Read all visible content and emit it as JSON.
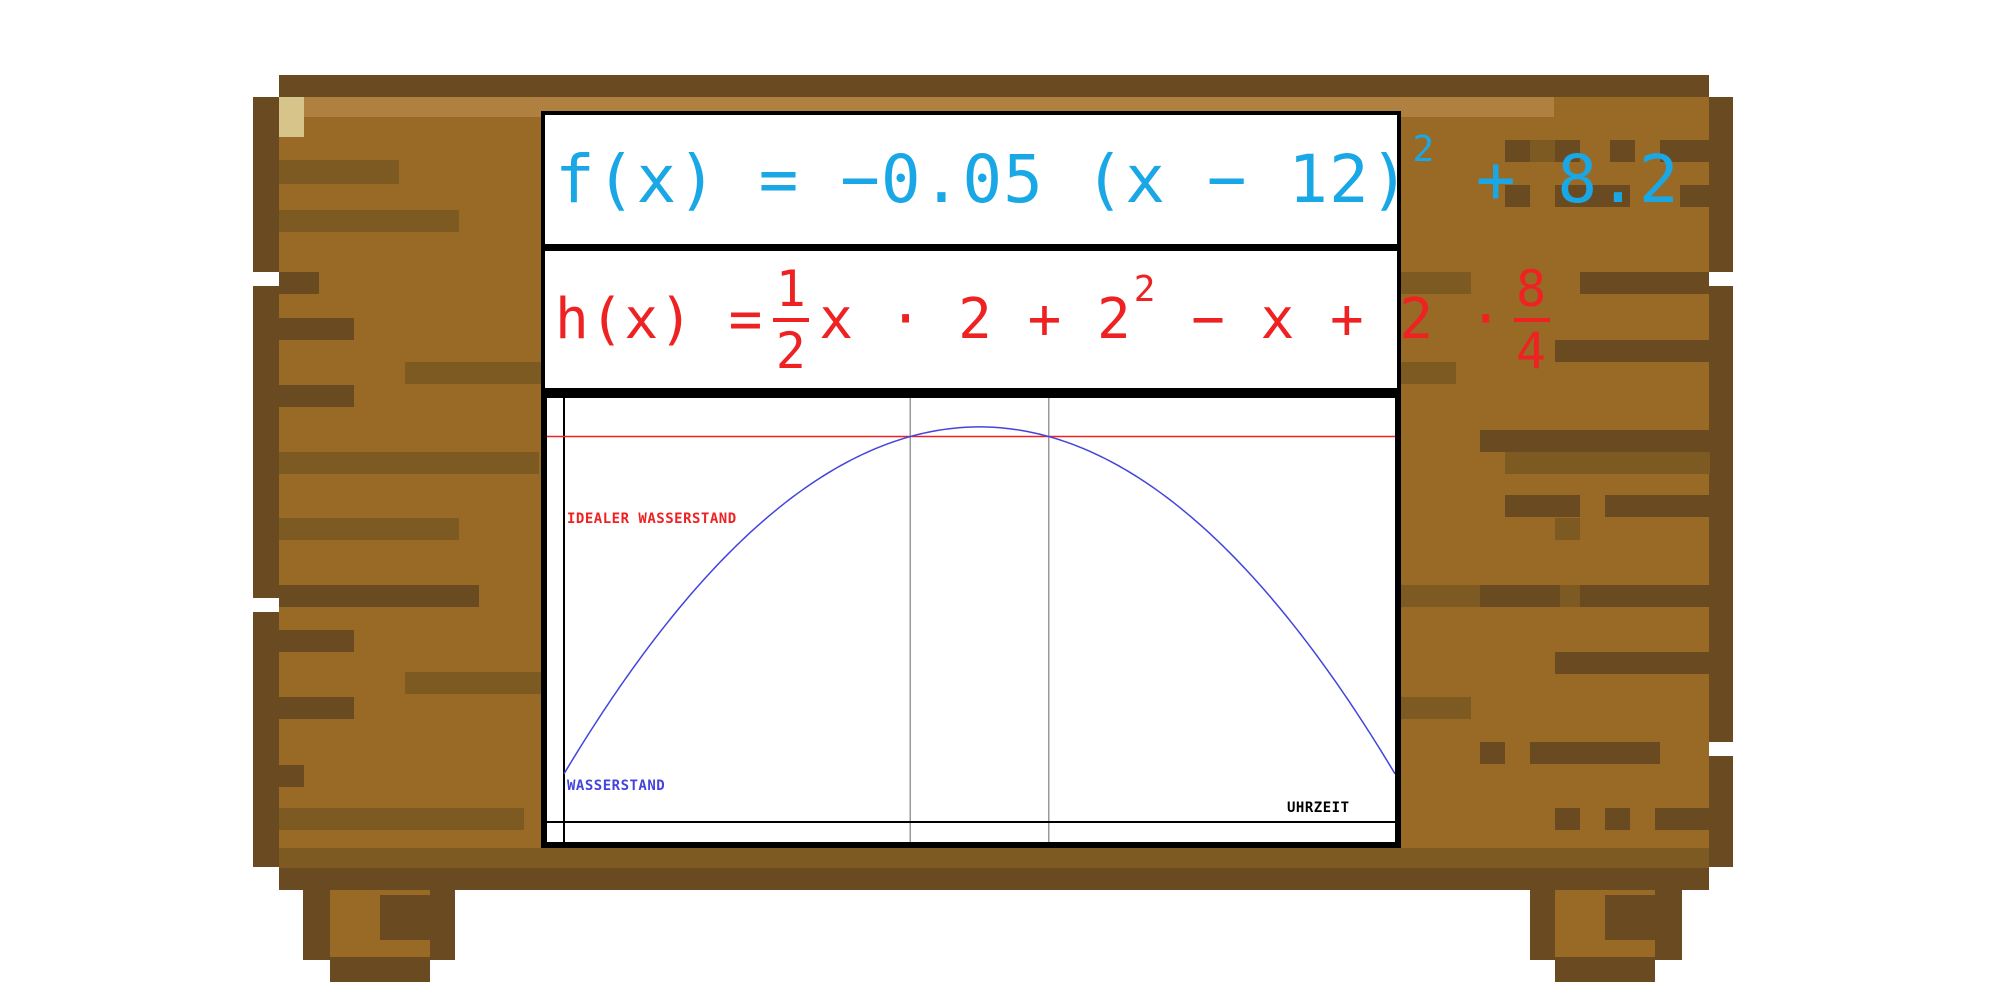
{
  "formula_f": {
    "prefix": "f(x) = −0.05 (x − 12)",
    "exponent": "2",
    "suffix": "+ 8.2",
    "color": "#1aa7e6"
  },
  "formula_h": {
    "prefix": "h(x) =",
    "frac1_num": "1",
    "frac1_den": "2",
    "middle": "x · 2 + 2",
    "exponent": "2",
    "after": "− x + 2 ·",
    "frac2_num": "8",
    "frac2_den": "4",
    "color": "#ee2222"
  },
  "graph": {
    "ideal_label": "IDEALER WASSERSTAND",
    "curve_label": "WASSERSTAND",
    "axis_label": "UHRZEIT",
    "curve_color": "#4444dd",
    "ideal_color": "#ee2222"
  },
  "chart_data": {
    "type": "line",
    "series": [
      {
        "name": "WASSERSTAND",
        "function": "-0.05*(x-12)^2+8.2",
        "x_range": [
          0,
          24
        ]
      },
      {
        "name": "IDEALER WASSERSTAND",
        "function": "8",
        "x_range": [
          0,
          24
        ]
      }
    ],
    "xlabel": "UHRZEIT",
    "ylabel": "",
    "xlim": [
      0,
      24
    ],
    "ylim": [
      0,
      8.8
    ],
    "vertical_gridlines_x": [
      10,
      14
    ],
    "grid": false
  },
  "colors": {
    "wood_main": "#986a26",
    "wood_dark": "#6a4a20",
    "wood_light": "#b08040",
    "wood_highlight": "#d6c48a"
  }
}
